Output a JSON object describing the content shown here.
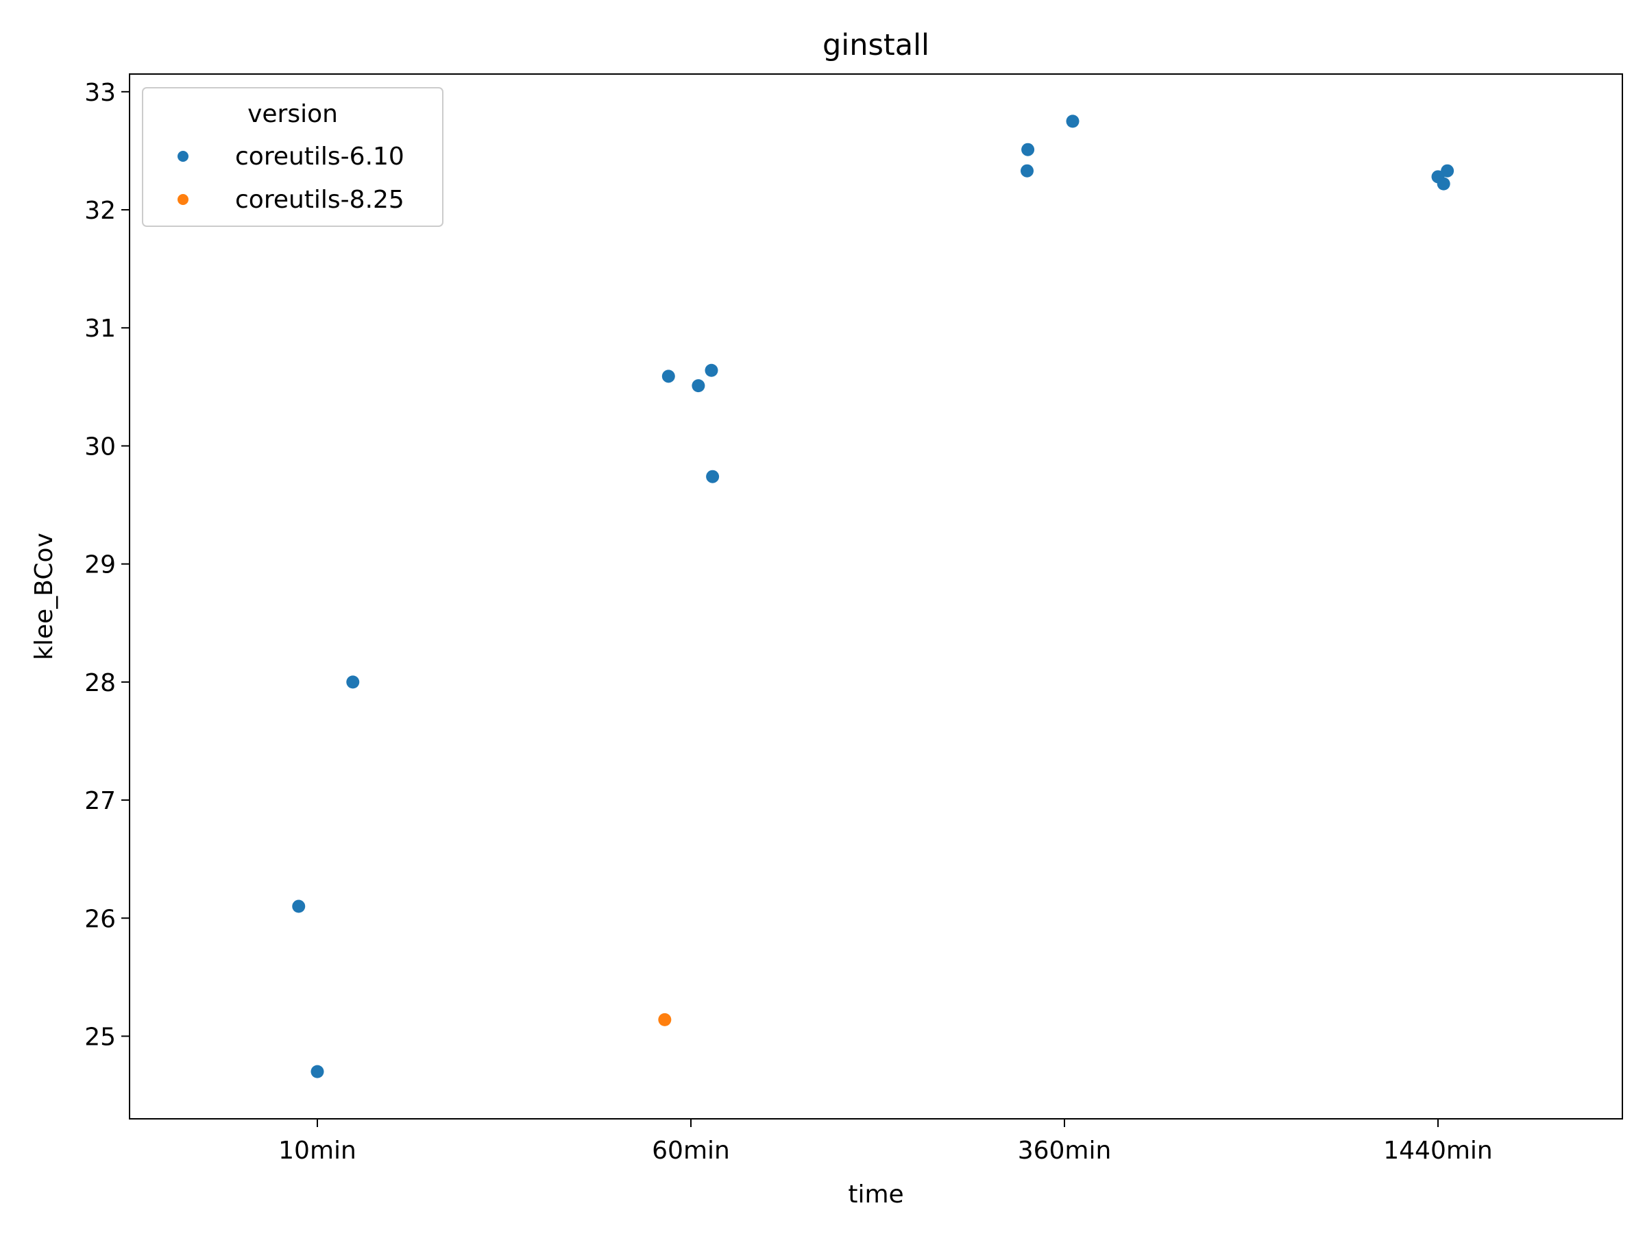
{
  "chart_data": {
    "type": "scatter",
    "title": "ginstall",
    "xlabel": "time",
    "ylabel": "klee_BCov",
    "categories": [
      "10min",
      "60min",
      "360min",
      "1440min"
    ],
    "ylim": [
      24.3,
      33.15
    ],
    "yticks": [
      25,
      26,
      27,
      28,
      29,
      30,
      31,
      32,
      33
    ],
    "grid": false,
    "legend": {
      "title": "version",
      "placement": "top-left"
    },
    "series": [
      {
        "name": "coreutils-6.10",
        "color": "#1f77b4",
        "points": [
          {
            "category": "10min",
            "jitter": -0.05,
            "y": 26.1
          },
          {
            "category": "10min",
            "jitter": 0.0,
            "y": 24.7
          },
          {
            "category": "10min",
            "jitter": 0.095,
            "y": 28.0
          },
          {
            "category": "60min",
            "jitter": -0.06,
            "y": 30.59
          },
          {
            "category": "60min",
            "jitter": 0.02,
            "y": 30.51
          },
          {
            "category": "60min",
            "jitter": 0.055,
            "y": 30.64
          },
          {
            "category": "60min",
            "jitter": 0.058,
            "y": 29.74
          },
          {
            "category": "360min",
            "jitter": -0.1,
            "y": 32.33
          },
          {
            "category": "360min",
            "jitter": -0.098,
            "y": 32.51
          },
          {
            "category": "360min",
            "jitter": 0.022,
            "y": 32.75
          },
          {
            "category": "1440min",
            "jitter": 0.0,
            "y": 32.28
          },
          {
            "category": "1440min",
            "jitter": 0.015,
            "y": 32.22
          },
          {
            "category": "1440min",
            "jitter": 0.025,
            "y": 32.33
          }
        ]
      },
      {
        "name": "coreutils-8.25",
        "color": "#ff7f0e",
        "points": [
          {
            "category": "60min",
            "jitter": -0.07,
            "y": 25.14
          }
        ]
      }
    ]
  }
}
